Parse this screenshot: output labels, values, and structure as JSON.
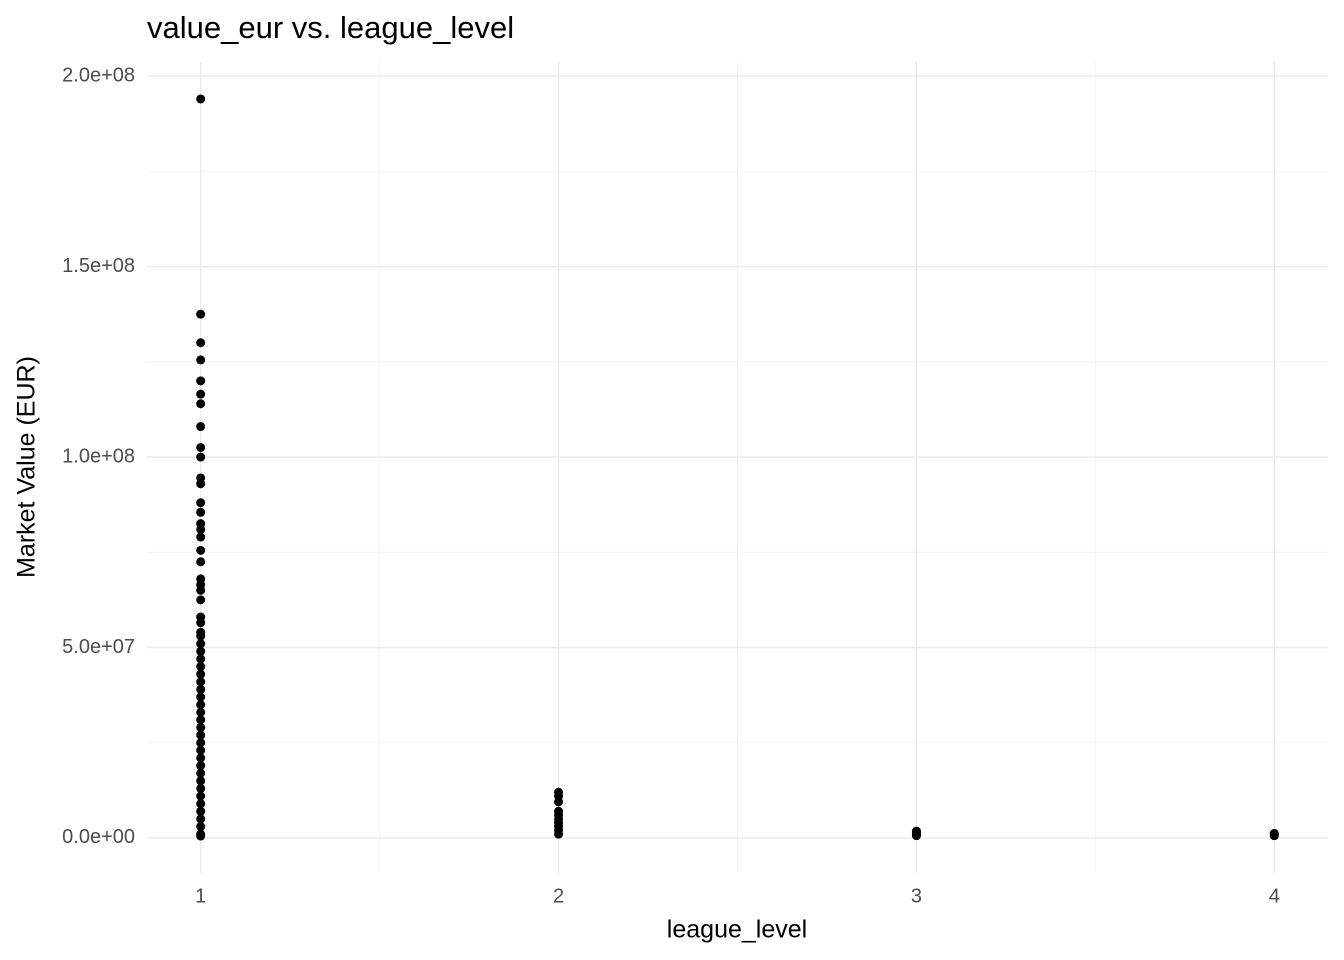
{
  "chart_data": {
    "type": "scatter",
    "title": "value_eur vs. league_level",
    "x_label": "league_level",
    "y_label": "Market Value (EUR)",
    "x": [
      1,
      1,
      1,
      1,
      1,
      1,
      1,
      1,
      1,
      1,
      1,
      1,
      1,
      1,
      1,
      1,
      1,
      1,
      1,
      1,
      1,
      1,
      1,
      1,
      1,
      1,
      1,
      1,
      1,
      1,
      1,
      1,
      1,
      1,
      1,
      1,
      1,
      1,
      1,
      1,
      1,
      1,
      1,
      1,
      1,
      1,
      1,
      1,
      1,
      1,
      1,
      1,
      1,
      1,
      2,
      2,
      2,
      2,
      2,
      2,
      2,
      2,
      2,
      2,
      3,
      3,
      3,
      3,
      4,
      4,
      4
    ],
    "values": [
      194000000,
      137500000,
      130000000,
      125500000,
      120000000,
      116500000,
      114000000,
      108000000,
      102500000,
      100000000,
      94500000,
      93000000,
      88000000,
      85500000,
      82500000,
      81000000,
      79000000,
      75500000,
      72500000,
      68000000,
      66500000,
      65000000,
      62500000,
      58000000,
      56500000,
      54000000,
      53000000,
      51000000,
      49000000,
      47000000,
      45000000,
      43000000,
      41000000,
      39000000,
      37000000,
      35000000,
      33000000,
      31000000,
      29000000,
      27000000,
      25000000,
      23000000,
      21000000,
      19000000,
      17000000,
      15000000,
      13000000,
      11000000,
      9000000,
      7000000,
      5000000,
      3000000,
      1000000,
      500000,
      12000000,
      11000000,
      9500000,
      7000000,
      6000000,
      5000000,
      4000000,
      3000000,
      2000000,
      1000000,
      1800000,
      1400000,
      1000000,
      600000,
      1200000,
      900000,
      600000
    ],
    "color": "#000000",
    "xlim": [
      0.85,
      4.15
    ],
    "xticks": [
      1,
      2,
      3,
      4
    ],
    "xminor": [
      1.5,
      2.5,
      3.5
    ],
    "ylim": [
      -9200000,
      203700000
    ],
    "yticks": [
      {
        "value": 0,
        "label": "0.0e+00"
      },
      {
        "value": 50000000,
        "label": "5.0e+07"
      },
      {
        "value": 100000000,
        "label": "1.0e+08"
      },
      {
        "value": 150000000,
        "label": "1.5e+08"
      },
      {
        "value": 200000000,
        "label": "2.0e+08"
      }
    ],
    "yminor": [
      25000000,
      75000000,
      125000000,
      175000000
    ],
    "grid": true
  }
}
